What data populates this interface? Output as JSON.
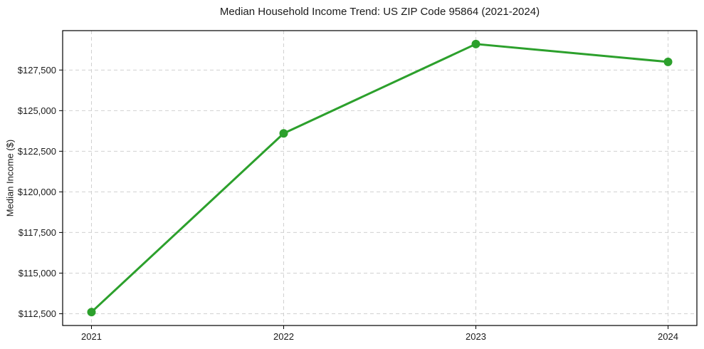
{
  "chart_data": {
    "type": "line",
    "title": "Median Household Income Trend: US ZIP Code 95864 (2021-2024)",
    "xlabel": "",
    "ylabel": "Median Income ($)",
    "x": [
      2021,
      2022,
      2023,
      2024
    ],
    "x_tick_labels": [
      "2021",
      "2022",
      "2023",
      "2024"
    ],
    "values": [
      112600,
      123600,
      129100,
      128000
    ],
    "y_ticks": [
      112500,
      115000,
      117500,
      120000,
      122500,
      125000,
      127500
    ],
    "y_tick_labels": [
      "$112,500",
      "$115,000",
      "$117,500",
      "$120,000",
      "$122,500",
      "$125,000",
      "$127,500"
    ],
    "xlim": [
      2020.85,
      2024.15
    ],
    "ylim": [
      111775,
      129925
    ],
    "grid": true,
    "grid_style": "dashed",
    "legend": false,
    "line_color": "#2ca02c",
    "marker": "circle",
    "grid_color": "#d0d0d0",
    "spine_color": "#000000",
    "text_color": "#1a1a1a",
    "background": "#ffffff"
  }
}
